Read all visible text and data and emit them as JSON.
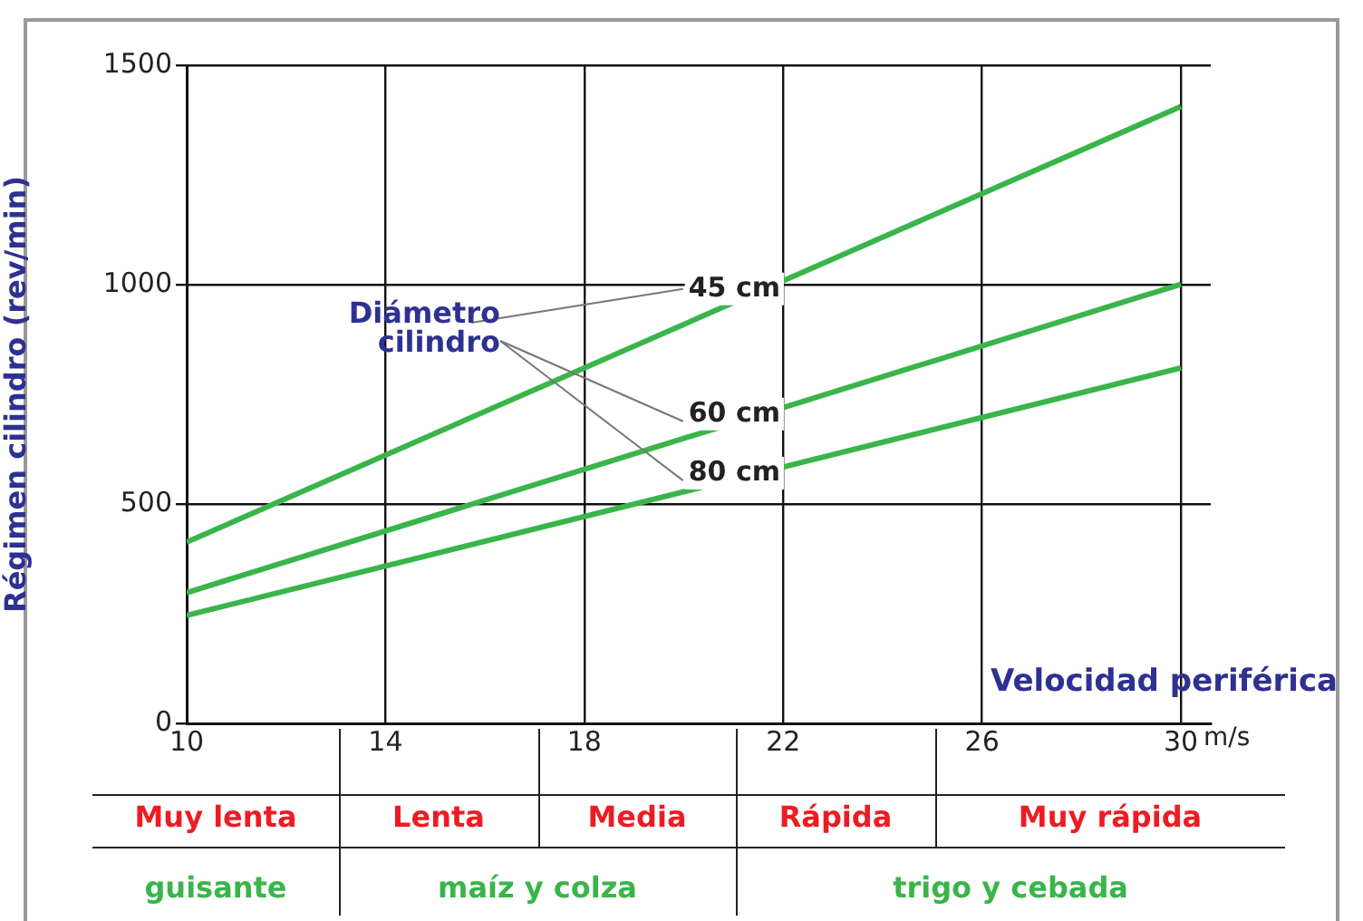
{
  "chart_data": {
    "type": "line",
    "xlabel": "Velocidad periférica",
    "ylabel": "Régimen cilindro (rev/min)",
    "x": [
      10,
      30
    ],
    "series": [
      {
        "name": "45 cm",
        "color": "#39b54a",
        "values": [
          413,
          1406
        ]
      },
      {
        "name": "60 cm",
        "color": "#39b54a",
        "values": [
          298,
          1001
        ]
      },
      {
        "name": "80 cm",
        "color": "#39b54a",
        "values": [
          246,
          810
        ]
      }
    ],
    "xlim": [
      10,
      30.6
    ],
    "xticks": [
      10,
      14,
      18,
      22,
      26,
      30
    ],
    "ylim": [
      0,
      1500
    ],
    "yticks": [
      0,
      500,
      1000,
      1500
    ],
    "grid": true,
    "legend": false,
    "marker": "none",
    "line_style": "solid",
    "annotations": [
      "Diámetro cilindro",
      "m/s",
      "Muy lenta",
      "Lenta",
      "Media",
      "Rápida",
      "Muy rápida",
      "guisante",
      "maíz y colza",
      "trigo y cebada"
    ]
  }
}
